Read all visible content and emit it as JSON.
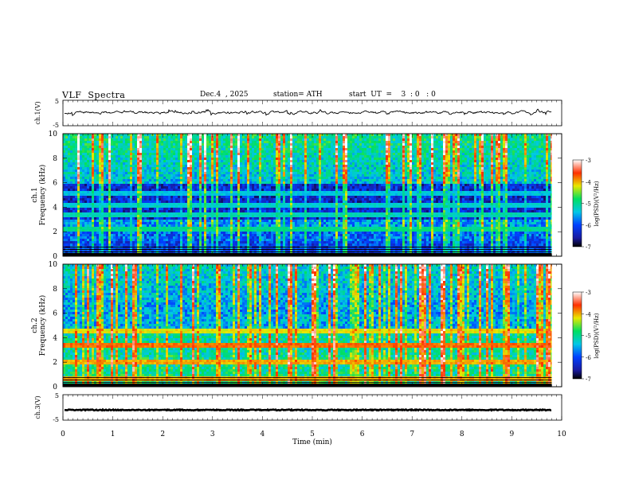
{
  "header": {
    "title": "VLF  Spectra",
    "date": "Dec.4  , 2025",
    "station": "station= ATH",
    "start_ut": "start  UT  =    3  : 0   : 0"
  },
  "chart_data": [
    {
      "type": "line",
      "name": "ch1-waveform",
      "ylabel": "ch.1(V)",
      "ylim": [
        -5,
        5
      ],
      "yticks": [
        "5",
        "-5"
      ],
      "xlim": [
        0,
        10
      ],
      "color": "#000000",
      "description_level": 0.2
    },
    {
      "type": "heatmap",
      "name": "ch1-spectrogram",
      "ylabel": "ch.1\nFrequency (kHz)",
      "ylabel_lines": [
        "ch.1",
        "Frequency (kHz)"
      ],
      "ylim": [
        0,
        10
      ],
      "yticks": [
        "0",
        "2",
        "4",
        "6",
        "8",
        "10"
      ],
      "xlim": [
        0,
        9.8
      ],
      "colorbar": {
        "label": "log(PSD)(V²/Hz)",
        "range": [
          -7,
          -3
        ],
        "ticks": [
          "-3",
          "-4",
          "-5",
          "-6",
          "-7"
        ]
      },
      "bands_khz": [
        {
          "f": 0.15,
          "level": -7
        },
        {
          "f": 2.2,
          "level": -5
        },
        {
          "f": 3.4,
          "level": -5.2
        },
        {
          "f": 4.2,
          "level": -5.3
        },
        {
          "f": 5.2,
          "level": -5.4
        }
      ]
    },
    {
      "type": "heatmap",
      "name": "ch2-spectrogram",
      "ylabel": "ch.2\nFrequency (kHz)",
      "ylabel_lines": [
        "ch.2",
        "Frequency (kHz)"
      ],
      "ylim": [
        0,
        10
      ],
      "yticks": [
        "0",
        "2",
        "4",
        "6",
        "8",
        "10"
      ],
      "xlim": [
        0,
        9.8
      ],
      "colorbar": {
        "label": "log(PSD)(V²/Hz)",
        "range": [
          -7,
          -3
        ],
        "ticks": [
          "-3",
          "-4",
          "-5",
          "-6",
          "-7"
        ]
      },
      "bands_khz": [
        {
          "f": 0.7,
          "level": -4
        },
        {
          "f": 2.0,
          "level": -4
        },
        {
          "f": 3.4,
          "level": -3.8
        },
        {
          "f": 4.6,
          "level": -4.2
        }
      ]
    },
    {
      "type": "line",
      "name": "ch3-waveform",
      "ylabel": "ch.3(V)",
      "ylim": [
        -5,
        5
      ],
      "yticks": [
        "5",
        "-5"
      ],
      "xlim": [
        0,
        10
      ],
      "color": "#000000",
      "description_level": -1
    }
  ],
  "x_axis": {
    "label": "Time  (min)",
    "ticks": [
      "0",
      "1",
      "2",
      "3",
      "4",
      "5",
      "6",
      "7",
      "8",
      "9",
      "10"
    ],
    "range": [
      0,
      10
    ]
  }
}
